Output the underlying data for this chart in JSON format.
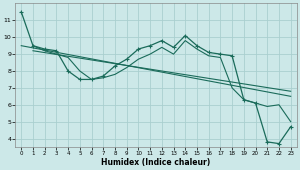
{
  "xlabel": "Humidex (Indice chaleur)",
  "background_color": "#cce8e8",
  "grid_color": "#aacfcf",
  "line_color": "#1a6b5a",
  "xlim": [
    -0.5,
    23.5
  ],
  "ylim": [
    3.5,
    12.0
  ],
  "yticks": [
    4,
    5,
    6,
    7,
    8,
    9,
    10,
    11
  ],
  "xticks": [
    0,
    1,
    2,
    3,
    4,
    5,
    6,
    7,
    8,
    9,
    10,
    11,
    12,
    13,
    14,
    15,
    16,
    17,
    18,
    19,
    20,
    21,
    22,
    23
  ],
  "main_x": [
    0,
    1,
    2,
    3,
    4,
    5,
    6,
    7,
    8,
    9,
    10,
    11,
    12,
    13,
    14,
    15,
    16,
    17,
    18,
    19,
    20,
    21,
    22,
    23
  ],
  "main_y": [
    11.5,
    9.5,
    9.3,
    9.2,
    8.0,
    7.5,
    7.5,
    7.7,
    8.3,
    8.7,
    9.3,
    9.5,
    9.8,
    9.4,
    10.1,
    9.5,
    9.1,
    9.0,
    8.9,
    6.3,
    6.1,
    3.8,
    3.7,
    4.7
  ],
  "line2_x": [
    1,
    2,
    3,
    4,
    5,
    6,
    7,
    8,
    9,
    10,
    11,
    12,
    13,
    14,
    15,
    16,
    17,
    18,
    19,
    20,
    21,
    22,
    23
  ],
  "line2_y": [
    9.5,
    9.2,
    9.0,
    8.8,
    8.0,
    7.5,
    7.6,
    7.8,
    8.2,
    8.7,
    9.0,
    9.4,
    9.0,
    9.8,
    9.3,
    8.9,
    8.8,
    7.0,
    6.3,
    6.1,
    5.9,
    6.0,
    5.0
  ],
  "trend1_x": [
    0,
    23
  ],
  "trend1_y": [
    9.5,
    6.5
  ],
  "trend2_x": [
    1,
    23
  ],
  "trend2_y": [
    9.2,
    6.8
  ]
}
